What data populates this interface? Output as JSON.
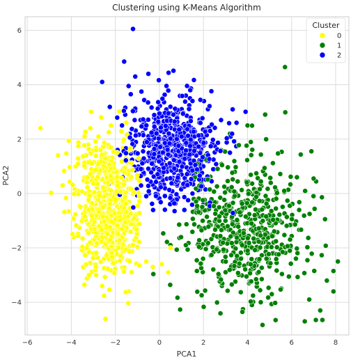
{
  "chart_data": {
    "type": "scatter",
    "title": "Clustering using K-Means Algorithm",
    "xlabel": "PCA1",
    "ylabel": "PCA2",
    "xlim": [
      -6.1,
      8.6
    ],
    "ylim": [
      -5.2,
      6.5
    ],
    "xticks": [
      -6,
      -4,
      -2,
      0,
      2,
      4,
      6,
      8
    ],
    "yticks": [
      -4,
      -2,
      0,
      2,
      4,
      6
    ],
    "xtick_labels": [
      "−6",
      "−4",
      "−2",
      "0",
      "2",
      "4",
      "6",
      "8"
    ],
    "ytick_labels": [
      "−4",
      "−2",
      "0",
      "2",
      "4",
      "6"
    ],
    "grid": true,
    "legend": {
      "title": "Cluster",
      "placement": "top-right"
    },
    "series": [
      {
        "name": "0",
        "color": "#ffff00",
        "center": [
          -2.3,
          -0.5
        ],
        "spread": [
          0.75,
          1.25
        ],
        "count": 650,
        "points": [
          [
            -5.4,
            2.4
          ],
          [
            -4.6,
            1.4
          ],
          [
            -4.4,
            0.3
          ],
          [
            -3.0,
            -2.2
          ],
          [
            -2.6,
            -3.4
          ],
          [
            -1.4,
            -3.6
          ],
          [
            -0.6,
            -2.5
          ],
          [
            -0.3,
            -2.7
          ],
          [
            0.1,
            -2.6
          ],
          [
            0.4,
            -2.9
          ],
          [
            0.5,
            -2.0
          ],
          [
            -1.5,
            2.6
          ],
          [
            -2.2,
            2.5
          ],
          [
            -3.4,
            2.1
          ],
          [
            -3.8,
            1.0
          ],
          [
            -3.9,
            -1.6
          ],
          [
            -3.2,
            -3.0
          ]
        ]
      },
      {
        "name": "1",
        "color": "#008000",
        "center": [
          3.9,
          -1.3
        ],
        "spread": [
          1.35,
          1.3
        ],
        "count": 560,
        "points": [
          [
            5.7,
            4.65
          ],
          [
            4.0,
            2.5
          ],
          [
            4.8,
            2.9
          ],
          [
            3.2,
            2.2
          ],
          [
            6.9,
            1.55
          ],
          [
            7.0,
            0.55
          ],
          [
            8.1,
            -2.5
          ],
          [
            7.9,
            -2.85
          ],
          [
            7.4,
            -4.65
          ],
          [
            7.1,
            -4.65
          ],
          [
            6.6,
            -4.7
          ],
          [
            7.3,
            -4.3
          ],
          [
            7.6,
            -3.2
          ],
          [
            7.9,
            -3.6
          ],
          [
            6.8,
            -3.9
          ],
          [
            4.2,
            -4.1
          ],
          [
            4.6,
            -4.0
          ],
          [
            5.1,
            -3.7
          ],
          [
            1.2,
            -1.9
          ],
          [
            0.5,
            -1.9
          ]
        ]
      },
      {
        "name": "2",
        "color": "#0000ff",
        "center": [
          0.6,
          1.6
        ],
        "spread": [
          1.05,
          1.0
        ],
        "count": 620,
        "points": [
          [
            -1.2,
            6.05
          ],
          [
            -1.6,
            4.85
          ],
          [
            -2.6,
            4.1
          ],
          [
            -0.5,
            4.4
          ],
          [
            -1.1,
            4.3
          ],
          [
            -1.3,
            3.65
          ],
          [
            -1.4,
            3.95
          ],
          [
            1.2,
            3.6
          ],
          [
            1.5,
            3.4
          ],
          [
            1.4,
            3.8
          ],
          [
            2.2,
            3.1
          ],
          [
            2.8,
            2.7
          ],
          [
            3.3,
            2.2
          ],
          [
            3.5,
            2.6
          ],
          [
            3.2,
            1.5
          ],
          [
            -1.7,
            2.5
          ],
          [
            -1.9,
            1.6
          ],
          [
            -1.4,
            0.8
          ],
          [
            -0.6,
            -0.1
          ],
          [
            1.5,
            0.0
          ],
          [
            2.2,
            -0.6
          ],
          [
            2.0,
            -0.4
          ]
        ]
      }
    ]
  }
}
